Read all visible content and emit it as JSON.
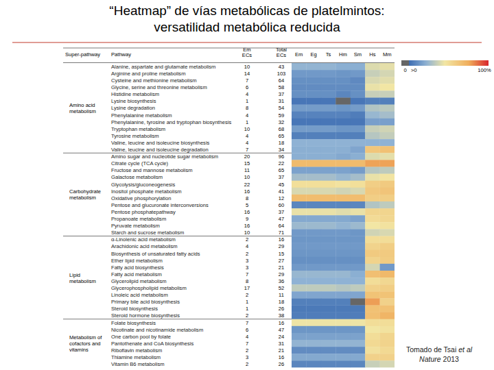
{
  "chart_data": {
    "type": "heatmap",
    "title": [
      "“Heatmap” de vías metabólicas de platelmintos:",
      "versatilidad metabólica reducida"
    ],
    "headers": {
      "super_pathway": "Super-pathway",
      "pathway": "Pathway",
      "em_ecs": [
        "Em",
        "ECs"
      ],
      "total_ecs": [
        "Total",
        "ECs"
      ]
    },
    "columns": [
      "Em",
      "Eg",
      "Ts",
      "Hm",
      "Sm",
      "Hs",
      "Mm"
    ],
    "colorbar": {
      "range": [
        0,
        100
      ],
      "ticks": [
        {
          "value": 0,
          "label": "0"
        },
        {
          "value": 1,
          "label": ">0"
        },
        {
          "value": 100,
          "label": "100%"
        }
      ]
    },
    "source": {
      "line1": "Tomado de Tsai",
      "line1_italic": "et al",
      "line2_italic": "Nature",
      "line2": "2013"
    },
    "groups": [
      {
        "name": [
          "Amino acid",
          "metabolism"
        ],
        "rows": [
          {
            "pathway": "Alanine, aspartate and glutamate metabolism",
            "em_ecs": 10,
            "total_ecs": 43,
            "values": [
              23,
              23,
              23,
              21,
              21,
              40,
              42
            ]
          },
          {
            "pathway": "Arginine and proline metabolism",
            "em_ecs": 14,
            "total_ecs": 103,
            "values": [
              14,
              14,
              14,
              13,
              14,
              35,
              38
            ]
          },
          {
            "pathway": "Cysteine and methionine metabolism",
            "em_ecs": 7,
            "total_ecs": 64,
            "values": [
              11,
              11,
              11,
              11,
              9,
              39,
              41
            ]
          },
          {
            "pathway": "Glycine, serine and threonine metabolism",
            "em_ecs": 6,
            "total_ecs": 58,
            "values": [
              10,
              10,
              10,
              10,
              10,
              43,
              45
            ]
          },
          {
            "pathway": "Histidine metabolism",
            "em_ecs": 4,
            "total_ecs": 37,
            "values": [
              11,
              11,
              11,
              8,
              11,
              35,
              35
            ]
          },
          {
            "pathway": "Lysine biosynthesis",
            "em_ecs": 1,
            "total_ecs": 31,
            "values": [
              3,
              3,
              3,
              0,
              3,
              6,
              6
            ]
          },
          {
            "pathway": "Lysine degradation",
            "em_ecs": 8,
            "total_ecs": 54,
            "values": [
              15,
              15,
              15,
              13,
              15,
              30,
              32
            ]
          },
          {
            "pathway": "Phenylalanine metabolism",
            "em_ecs": 4,
            "total_ecs": 59,
            "values": [
              7,
              7,
              7,
              7,
              5,
              24,
              27
            ]
          },
          {
            "pathway": "Phenylalanine, tyrosine and tryptophan biosynthesis",
            "em_ecs": 1,
            "total_ecs": 32,
            "values": [
              3,
              3,
              3,
              3,
              3,
              16,
              16
            ]
          },
          {
            "pathway": "Tryptophan metabolism",
            "em_ecs": 10,
            "total_ecs": 68,
            "values": [
              15,
              15,
              15,
              13,
              13,
              35,
              37
            ]
          },
          {
            "pathway": "Tyrosine metabolism",
            "em_ecs": 4,
            "total_ecs": 65,
            "values": [
              6,
              6,
              6,
              6,
              6,
              31,
              34
            ]
          },
          {
            "pathway": "Valine, leucine and isoleucine biosynthesis",
            "em_ecs": 4,
            "total_ecs": 18,
            "values": [
              22,
              22,
              22,
              22,
              22,
              22,
              22
            ]
          },
          {
            "pathway": "Valine, leucine and isoleucine degradation",
            "em_ecs": 7,
            "total_ecs": 34,
            "values": [
              21,
              21,
              21,
              21,
              18,
              62,
              65
            ]
          }
        ]
      },
      {
        "name": [
          "Carbohydrate",
          "metabolism"
        ],
        "rows": [
          {
            "pathway": "Amino sugar and nucleotide sugar metabolism",
            "em_ecs": 20,
            "total_ecs": 96,
            "values": [
              21,
              21,
              21,
              19,
              21,
              40,
              42
            ]
          },
          {
            "pathway": "Citrate cycle (TCA cycle)",
            "em_ecs": 15,
            "total_ecs": 22,
            "values": [
              68,
              68,
              68,
              68,
              68,
              77,
              77
            ]
          },
          {
            "pathway": "Fructose and mannose metabolism",
            "em_ecs": 11,
            "total_ecs": 65,
            "values": [
              17,
              17,
              17,
              17,
              15,
              31,
              33
            ]
          },
          {
            "pathway": "Galactose metabolism",
            "em_ecs": 10,
            "total_ecs": 37,
            "values": [
              27,
              27,
              27,
              24,
              27,
              43,
              46
            ]
          },
          {
            "pathway": "Glycolysis/gluconeogenesis",
            "em_ecs": 22,
            "total_ecs": 45,
            "values": [
              49,
              49,
              49,
              47,
              49,
              58,
              60
            ]
          },
          {
            "pathway": "Inositol phosphate metabolism",
            "em_ecs": 16,
            "total_ecs": 41,
            "values": [
              39,
              39,
              39,
              37,
              39,
              61,
              63
            ]
          },
          {
            "pathway": "Oxidative phosphorylation",
            "em_ecs": 8,
            "total_ecs": 12,
            "values": [
              67,
              67,
              67,
              67,
              67,
              58,
              58
            ]
          },
          {
            "pathway": "Pentose and glucuronate interconversions",
            "em_ecs": 5,
            "total_ecs": 60,
            "values": [
              8,
              8,
              8,
              8,
              8,
              30,
              33
            ]
          },
          {
            "pathway": "Pentose phosphatepathway",
            "em_ecs": 16,
            "total_ecs": 37,
            "values": [
              43,
              43,
              43,
              41,
              43,
              54,
              54
            ]
          },
          {
            "pathway": "Propanoate metabolism",
            "em_ecs": 9,
            "total_ecs": 47,
            "values": [
              19,
              19,
              19,
              19,
              17,
              51,
              53
            ]
          },
          {
            "pathway": "Pyruvate metabolism",
            "em_ecs": 16,
            "total_ecs": 64,
            "values": [
              25,
              25,
              25,
              23,
              25,
              45,
              47
            ]
          },
          {
            "pathway": "Starch and sucrose metabolism",
            "em_ecs": 10,
            "total_ecs": 71,
            "values": [
              14,
              14,
              14,
              14,
              13,
              37,
              39
            ]
          }
        ]
      },
      {
        "name": [
          "Lipid",
          "metabolism"
        ],
        "rows": [
          {
            "pathway": "α-Linolenic acid metabolism",
            "em_ecs": 2,
            "total_ecs": 16,
            "values": [
              13,
              13,
              13,
              13,
              13,
              50,
              50
            ]
          },
          {
            "pathway": "Arachidonic acid metabolism",
            "em_ecs": 4,
            "total_ecs": 29,
            "values": [
              14,
              14,
              14,
              14,
              14,
              55,
              58
            ]
          },
          {
            "pathway": "Biosynthesis of unsaturated fatty acids",
            "em_ecs": 2,
            "total_ecs": 15,
            "values": [
              13,
              13,
              13,
              13,
              13,
              60,
              60
            ]
          },
          {
            "pathway": "Ether lipid metabolism",
            "em_ecs": 3,
            "total_ecs": 27,
            "values": [
              11,
              11,
              11,
              11,
              11,
              55,
              59
            ]
          },
          {
            "pathway": "Fatty acid biosynthesis",
            "em_ecs": 3,
            "total_ecs": 21,
            "values": [
              14,
              14,
              14,
              14,
              14,
              38,
              14
            ]
          },
          {
            "pathway": "Fatty acid metabolism",
            "em_ecs": 7,
            "total_ecs": 29,
            "values": [
              24,
              24,
              24,
              24,
              21,
              66,
              69
            ]
          },
          {
            "pathway": "Glycerolipid metabolism",
            "em_ecs": 8,
            "total_ecs": 36,
            "values": [
              22,
              22,
              22,
              22,
              22,
              50,
              53
            ]
          },
          {
            "pathway": "Glycerophospholipid metabolism",
            "em_ecs": 17,
            "total_ecs": 52,
            "values": [
              33,
              33,
              33,
              31,
              33,
              56,
              58
            ]
          },
          {
            "pathway": "Linoleic acid metabolism",
            "em_ecs": 2,
            "total_ecs": 11,
            "values": [
              18,
              18,
              18,
              18,
              18,
              64,
              64
            ]
          },
          {
            "pathway": "Primary bile acid biosynthesis",
            "em_ecs": 1,
            "total_ecs": 18,
            "values": [
              6,
              6,
              6,
              6,
              0,
              78,
              56
            ]
          },
          {
            "pathway": "Steroid biosynthesis",
            "em_ecs": 1,
            "total_ecs": 26,
            "values": [
              4,
              4,
              4,
              4,
              4,
              65,
              65
            ]
          },
          {
            "pathway": "Steroid hormone biosynthesis",
            "em_ecs": 2,
            "total_ecs": 38,
            "values": [
              5,
              5,
              5,
              5,
              5,
              66,
              71
            ]
          }
        ]
      },
      {
        "name": [
          "Metabolism of",
          "cofactors and",
          "vitamins"
        ],
        "rows": [
          {
            "pathway": "Folate biosynthesis",
            "em_ecs": 7,
            "total_ecs": 16,
            "values": [
              44,
              44,
              44,
              44,
              44,
              50,
              50
            ]
          },
          {
            "pathway": "Nicotinate and nicotinamide metabolism",
            "em_ecs": 6,
            "total_ecs": 47,
            "values": [
              13,
              13,
              13,
              13,
              13,
              45,
              47
            ]
          },
          {
            "pathway": "One carbon pool by folate",
            "em_ecs": 4,
            "total_ecs": 24,
            "values": [
              17,
              17,
              17,
              17,
              17,
              50,
              54
            ]
          },
          {
            "pathway": "Pantothenate and CoA biosynthesis",
            "em_ecs": 7,
            "total_ecs": 31,
            "values": [
              23,
              23,
              23,
              23,
              23,
              52,
              55
            ]
          },
          {
            "pathway": "Riboflavin metabolism",
            "em_ecs": 2,
            "total_ecs": 21,
            "values": [
              10,
              10,
              10,
              10,
              10,
              48,
              52
            ]
          },
          {
            "pathway": "Thiamine metabolism",
            "em_ecs": 3,
            "total_ecs": 16,
            "values": [
              19,
              19,
              19,
              19,
              19,
              56,
              56
            ]
          },
          {
            "pathway": "Vitamin B6 metabolism",
            "em_ecs": 2,
            "total_ecs": 26,
            "values": [
              8,
              8,
              8,
              8,
              8,
              35,
              38
            ]
          }
        ]
      }
    ]
  }
}
